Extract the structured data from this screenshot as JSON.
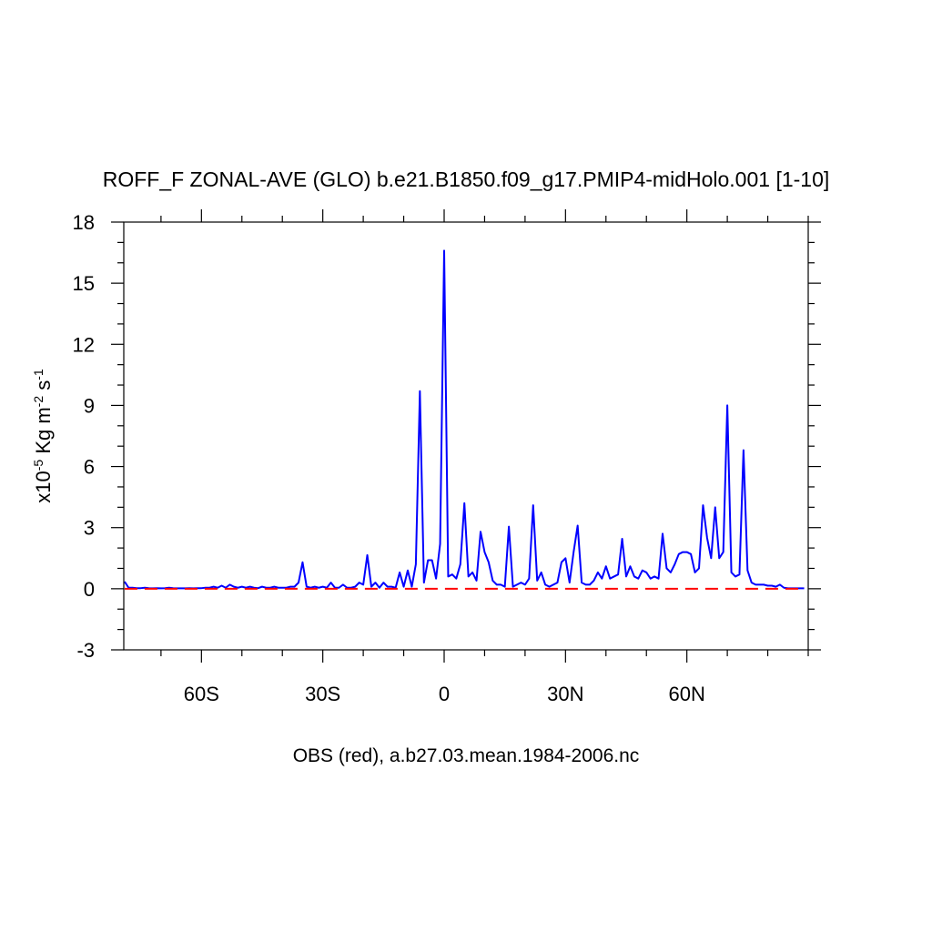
{
  "chart_data": {
    "type": "line",
    "title": "ROFF_F ZONAL-AVE (GLO) b.e21.B1850.f09_g17.PMIP4-midHolo.001 [1-10]",
    "xlabel": "OBS (red), a.b27.03.mean.1984-2006.nc",
    "ylabel": [
      "x10",
      "-5",
      " Kg m",
      "-2",
      " s",
      "-1"
    ],
    "xlim": [
      -79.2,
      90
    ],
    "ylim": [
      -3,
      18
    ],
    "xticks": [
      {
        "value": -60,
        "label": "60S"
      },
      {
        "value": -30,
        "label": "30S"
      },
      0,
      {
        "value": 30,
        "label": "30N"
      },
      {
        "value": 60,
        "label": "60N"
      }
    ],
    "xminorticks": [
      -70,
      -50,
      -40,
      -20,
      -10,
      10,
      20,
      40,
      50,
      70,
      80,
      90
    ],
    "yticks": [
      -3,
      0,
      3,
      6,
      9,
      12,
      15,
      18
    ],
    "yminorticks": [
      -2,
      -1,
      1,
      2,
      4,
      5,
      7,
      8,
      10,
      11,
      13,
      14,
      16,
      17
    ],
    "x": [
      -79,
      -78,
      -77,
      -76,
      -75,
      -74,
      -73,
      -72,
      -71,
      -70,
      -69,
      -68,
      -67,
      -66,
      -65,
      -64,
      -63,
      -62,
      -61,
      -60,
      -59,
      -58,
      -57,
      -56,
      -55,
      -54,
      -53,
      -52,
      -51,
      -50,
      -49,
      -48,
      -47,
      -46,
      -45,
      -44,
      -43,
      -42,
      -41,
      -40,
      -39,
      -38,
      -37,
      -36,
      -35,
      -34,
      -33,
      -32,
      -31,
      -30,
      -29,
      -28,
      -27,
      -26,
      -25,
      -24,
      -23,
      -22,
      -21,
      -20,
      -19,
      -18,
      -17,
      -16,
      -15,
      -14,
      -13,
      -12,
      -11,
      -10,
      -9,
      -8,
      -7,
      -6,
      -5,
      -4,
      -3,
      -2,
      -1,
      0,
      1,
      2,
      3,
      4,
      5,
      6,
      7,
      8,
      9,
      10,
      11,
      12,
      13,
      14,
      15,
      16,
      17,
      18,
      19,
      20,
      21,
      22,
      23,
      24,
      25,
      26,
      27,
      28,
      29,
      30,
      31,
      32,
      33,
      34,
      35,
      36,
      37,
      38,
      39,
      40,
      41,
      42,
      43,
      44,
      45,
      46,
      47,
      48,
      49,
      50,
      51,
      52,
      53,
      54,
      55,
      56,
      57,
      58,
      59,
      60,
      61,
      62,
      63,
      64,
      65,
      66,
      67,
      68,
      69,
      70,
      71,
      72,
      73,
      74,
      75,
      76,
      77,
      78,
      79,
      80,
      81,
      82,
      83,
      84,
      85,
      86,
      87,
      88,
      89
    ],
    "series": [
      {
        "color": "#0000ff",
        "dashed": false,
        "values": [
          0.35,
          0.05,
          0.05,
          0.03,
          0.03,
          0.05,
          0.03,
          0.02,
          0.03,
          0.02,
          0.03,
          0.05,
          0.03,
          0.02,
          0.02,
          0.02,
          0.03,
          0.02,
          0.03,
          0.03,
          0.05,
          0.05,
          0.1,
          0.05,
          0.15,
          0.05,
          0.2,
          0.1,
          0.05,
          0.1,
          0.05,
          0.1,
          0.05,
          0.03,
          0.1,
          0.05,
          0.05,
          0.1,
          0.05,
          0.05,
          0.05,
          0.1,
          0.1,
          0.3,
          1.3,
          0.1,
          0.05,
          0.1,
          0.05,
          0.1,
          0.05,
          0.3,
          0.05,
          0.05,
          0.2,
          0.05,
          0.05,
          0.1,
          0.3,
          0.2,
          1.65,
          0.1,
          0.3,
          0.05,
          0.3,
          0.1,
          0.1,
          0.05,
          0.8,
          0.1,
          0.9,
          0.1,
          1.2,
          9.7,
          0.3,
          1.4,
          1.4,
          0.5,
          2.2,
          16.6,
          0.6,
          0.7,
          0.5,
          1.2,
          4.2,
          0.6,
          0.8,
          0.4,
          2.8,
          1.8,
          1.3,
          0.4,
          0.2,
          0.2,
          0.1,
          3.05,
          0.1,
          0.2,
          0.3,
          0.2,
          0.5,
          4.1,
          0.4,
          0.8,
          0.2,
          0.1,
          0.2,
          0.3,
          1.3,
          1.5,
          0.3,
          1.8,
          3.1,
          0.3,
          0.2,
          0.2,
          0.4,
          0.8,
          0.5,
          1.1,
          0.5,
          0.6,
          0.7,
          2.45,
          0.6,
          1.1,
          0.6,
          0.5,
          0.9,
          0.8,
          0.5,
          0.6,
          0.5,
          2.7,
          1.0,
          0.8,
          1.2,
          1.7,
          1.8,
          1.8,
          1.7,
          0.8,
          1.0,
          4.1,
          2.5,
          1.5,
          4.0,
          1.5,
          1.8,
          9.0,
          0.8,
          0.6,
          0.7,
          6.8,
          0.9,
          0.3,
          0.2,
          0.2,
          0.2,
          0.15,
          0.15,
          0.1,
          0.2,
          0.05,
          0.02,
          0.02,
          0.02,
          0.02,
          0.02
        ]
      },
      {
        "color": "#ff0000",
        "dashed": true,
        "values": [
          0,
          0,
          0,
          0,
          0,
          0,
          0,
          0,
          0,
          0,
          0,
          0,
          0,
          0,
          0,
          0,
          0,
          0,
          0,
          0,
          0,
          0,
          0,
          0,
          0,
          0,
          0,
          0,
          0,
          0,
          0,
          0,
          0,
          0,
          0,
          0,
          0,
          0,
          0,
          0,
          0,
          0,
          0,
          0,
          0,
          0,
          0,
          0,
          0,
          0,
          0,
          0,
          0,
          0,
          0,
          0,
          0,
          0,
          0,
          0,
          0,
          0,
          0,
          0,
          0,
          0,
          0,
          0,
          0,
          0,
          0,
          0,
          0,
          0,
          0,
          0,
          0,
          0,
          0,
          0,
          0,
          0,
          0,
          0,
          0,
          0,
          0,
          0,
          0,
          0,
          0,
          0,
          0,
          0,
          0,
          0,
          0,
          0,
          0,
          0,
          0,
          0,
          0,
          0,
          0,
          0,
          0,
          0,
          0,
          0,
          0,
          0,
          0,
          0,
          0,
          0,
          0,
          0,
          0,
          0,
          0,
          0,
          0,
          0,
          0,
          0,
          0,
          0,
          0,
          0,
          0,
          0,
          0,
          0,
          0,
          0,
          0,
          0,
          0,
          0,
          0,
          0,
          0,
          0,
          0,
          0,
          0,
          0,
          0,
          0,
          0,
          0,
          0,
          0,
          0,
          0,
          0,
          0,
          0,
          0,
          0,
          0,
          0,
          0,
          0,
          0,
          0,
          0,
          0
        ]
      }
    ]
  }
}
